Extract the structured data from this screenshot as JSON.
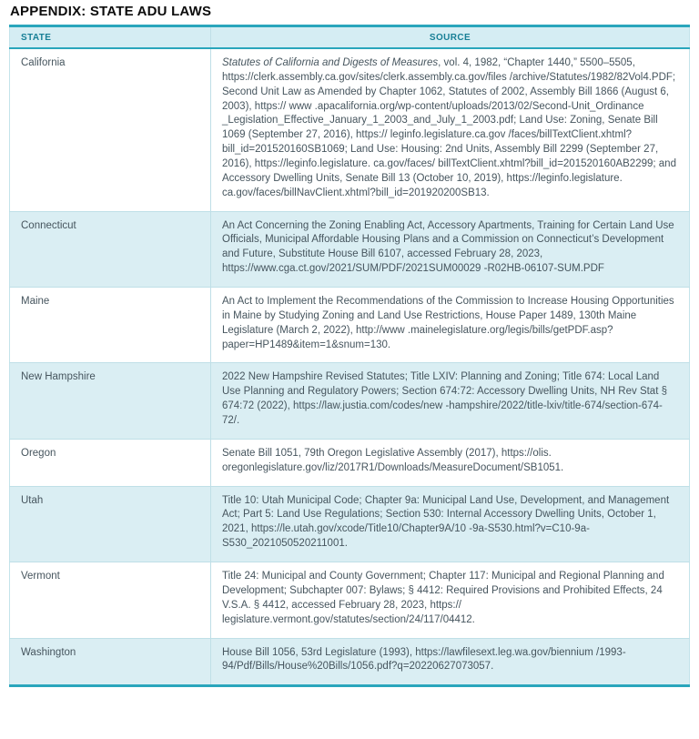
{
  "title": "APPENDIX: STATE ADU LAWS",
  "colors": {
    "accent_teal": "#2aa6bc",
    "header_text": "#177f96",
    "row_alt_bg": "#daeef3",
    "body_text": "#46555e"
  },
  "table": {
    "headers": [
      "STATE",
      "SOURCE"
    ],
    "rows": [
      {
        "state": "California",
        "source_italic": "Statutes of California and Digests of Measures",
        "source_rest": ", vol. 4, 1982, “Chapter 1440,” 5500–5505, https://clerk.assembly.ca.gov/sites/clerk.assembly.ca.gov/files /archive/Statutes/1982/82Vol4.PDF; Second Unit Law as Amended by Chapter 1062, Statutes of 2002, Assembly Bill 1866 (August 6, 2003), https:// www .apacalifornia.org/wp-content/uploads/2013/02/Second-Unit_Ordinance _Legislation_Effective_January_1_2003_and_July_1_2003.pdf; Land Use: Zoning, Senate Bill 1069 (September 27, 2016), https:// leginfo.legislature.ca.gov /faces/billTextClient.xhtml?bill_id=201520160SB1069; Land Use: Housing: 2nd Units, Assembly Bill 2299 (September 27, 2016), https://leginfo.legislature. ca.gov/faces/ billTextClient.xhtml?bill_id=201520160AB2299; and Accessory Dwelling Units, Senate Bill 13 (October 10, 2019), https://leginfo.legislature. ca.gov/faces/billNavClient.xhtml?bill_id=201920200SB13."
      },
      {
        "state": "Connecticut",
        "source": "An Act Concerning the Zoning Enabling Act, Accessory Apartments, Training for Certain Land Use Officials, Municipal Affordable Housing Plans and a Commission on Connecticut’s Development and Future, Substitute House Bill 6107, accessed February 28, 2023, https://www.cga.ct.gov/2021/SUM/PDF/2021SUM00029 -R02HB-06107-SUM.PDF"
      },
      {
        "state": "Maine",
        "source": "An Act to Implement the Recommendations of the Commission to Increase Housing Opportunities in Maine by Studying Zoning and Land Use Restrictions, House Paper 1489, 130th Maine Legislature (March 2, 2022), http://www .mainelegislature.org/legis/bills/getPDF.asp?paper=HP1489&item=1&snum=130."
      },
      {
        "state": "New Hampshire",
        "source": "2022 New Hampshire Revised Statutes; Title LXIV: Planning and Zoning; Title 674: Local Land Use Planning and Regulatory Powers; Section 674:72: Accessory Dwelling Units, NH Rev Stat § 674:72 (2022), https://law.justia.com/codes/new -hampshire/2022/title-lxiv/title-674/section-674-72/."
      },
      {
        "state": "Oregon",
        "source": "Senate Bill 1051, 79th Oregon Legislative Assembly (2017),  https://olis. oregonlegislature.gov/liz/2017R1/Downloads/MeasureDocument/SB1051."
      },
      {
        "state": "Utah",
        "source": "Title 10: Utah Municipal Code; Chapter 9a: Municipal Land Use, Development, and Management Act; Part 5: Land Use Regulations; Section 530: Internal Accessory Dwelling Units, October 1, 2021, https://le.utah.gov/xcode/Title10/Chapter9A/10 -9a-S530.html?v=C10-9a-S530_2021050520211001."
      },
      {
        "state": "Vermont",
        "source": "Title 24: Municipal and County Government; Chapter 117: Municipal and Regional Planning and Development; Subchapter 007: Bylaws; § 4412: Required Provisions and Prohibited Effects, 24 V.S.A. § 4412, accessed February 28, 2023, https:// legislature.vermont.gov/statutes/section/24/117/04412."
      },
      {
        "state": "Washington",
        "source": "House Bill 1056, 53rd Legislature (1993), https://lawfilesext.leg.wa.gov/biennium /1993-94/Pdf/Bills/House%20Bills/1056.pdf?q=20220627073057."
      }
    ]
  }
}
